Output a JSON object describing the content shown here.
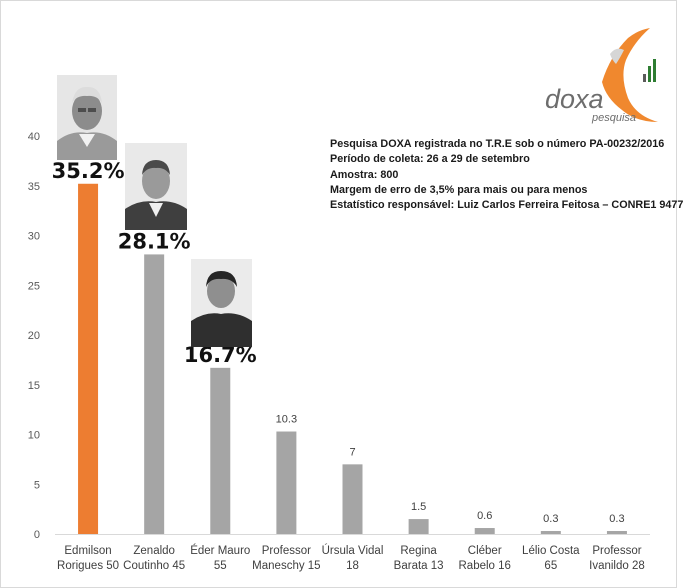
{
  "info": {
    "lines": [
      "Pesquisa DOXA registrada no T.R.E sob o número PA-00232/2016",
      "Período de coleta: 26 a 29 de setembro",
      "Amostra: 800",
      "Margem de erro de 3,5% para mais ou para menos",
      "Estatístico responsável: Luiz Carlos Ferreira Feitosa – CONRE1 9477"
    ]
  },
  "logo": {
    "brand": "doxa",
    "tagline": "pesquisa"
  },
  "colors": {
    "highlight": "#ED7D31",
    "bar": "#A5A5A5",
    "brand_orange": "#F0882E",
    "brand_gray": "#6D6D6D",
    "brand_green": "#2E7D32"
  },
  "chart_data": {
    "type": "bar",
    "title": "",
    "xlabel": "",
    "ylabel": "",
    "ylim": [
      0,
      40
    ],
    "yticks": [
      0,
      5,
      10,
      15,
      20,
      25,
      30,
      35,
      40
    ],
    "grid": false,
    "categories": [
      [
        "Edmilson",
        "Rorigues 50"
      ],
      [
        "Zenaldo",
        "Coutinho 45"
      ],
      [
        "Éder Mauro",
        "55"
      ],
      [
        "Professor",
        "Maneschy 15"
      ],
      [
        "Úrsula Vidal",
        "18"
      ],
      [
        "Regina",
        "Barata 13"
      ],
      [
        "Cléber",
        "Rabelo 16"
      ],
      [
        "Lélio Costa",
        "65"
      ],
      [
        "Professor",
        "Ivanildo 28"
      ]
    ],
    "values": [
      35.2,
      28.1,
      16.7,
      10.3,
      7,
      1.5,
      0.6,
      0.3,
      0.3
    ],
    "data_labels": [
      "35.2%",
      "28.1%",
      "16.7%",
      "10.3",
      "7",
      "1.5",
      "0.6",
      "0.3",
      "0.3"
    ],
    "big_label_count": 3,
    "highlight_index": 0
  }
}
